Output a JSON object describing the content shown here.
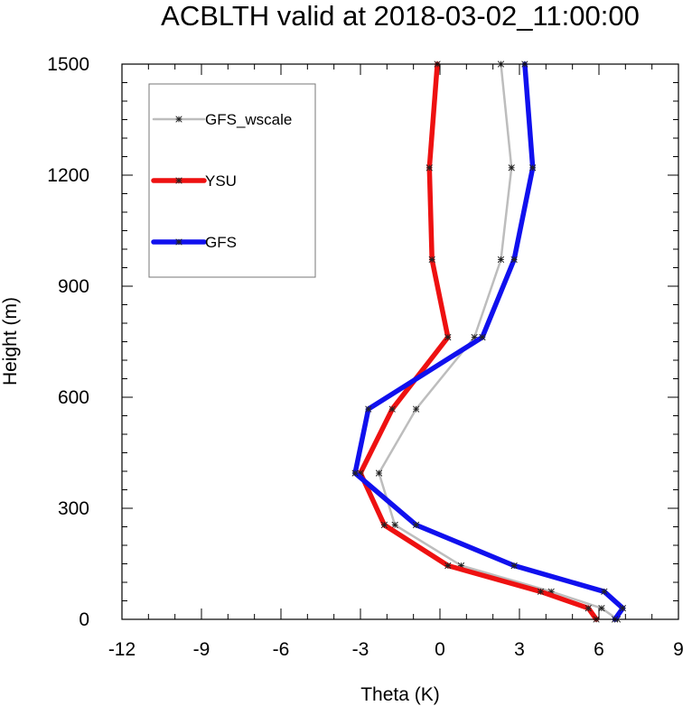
{
  "chart_data": {
    "type": "line",
    "title": "ACBLTH valid at 2018-03-02_11:00:00",
    "xlabel": "Theta (K)",
    "ylabel": "Height (m)",
    "xlim": [
      -12,
      9
    ],
    "ylim": [
      0,
      1500
    ],
    "xticks": [
      "-12",
      "-9",
      "-6",
      "-3",
      "0",
      "3",
      "6",
      "9"
    ],
    "yticks": [
      "0",
      "300",
      "600",
      "900",
      "1200",
      "1500"
    ],
    "legend_position": "top-left",
    "grid": false,
    "series": [
      {
        "name": "GFS_wscale",
        "color": "#bdbdbd",
        "points": [
          [
            6.7,
            0
          ],
          [
            6.1,
            30
          ],
          [
            4.2,
            75
          ],
          [
            0.8,
            145
          ],
          [
            -1.7,
            255
          ],
          [
            -2.3,
            395
          ],
          [
            -0.9,
            568
          ],
          [
            1.3,
            762
          ],
          [
            2.3,
            972
          ],
          [
            2.7,
            1220
          ],
          [
            2.3,
            1500
          ]
        ]
      },
      {
        "name": "YSU",
        "color": "#ee1111",
        "points": [
          [
            5.9,
            0
          ],
          [
            5.6,
            30
          ],
          [
            3.8,
            75
          ],
          [
            0.3,
            145
          ],
          [
            -2.1,
            255
          ],
          [
            -3.0,
            395
          ],
          [
            -1.8,
            568
          ],
          [
            0.3,
            762
          ],
          [
            -0.3,
            972
          ],
          [
            -0.4,
            1220
          ],
          [
            -0.1,
            1500
          ]
        ]
      },
      {
        "name": "GFS",
        "color": "#1010ee",
        "points": [
          [
            6.6,
            0
          ],
          [
            6.9,
            30
          ],
          [
            6.2,
            75
          ],
          [
            2.8,
            145
          ],
          [
            -0.9,
            255
          ],
          [
            -3.2,
            395
          ],
          [
            -2.7,
            568
          ],
          [
            1.6,
            762
          ],
          [
            2.8,
            972
          ],
          [
            3.5,
            1220
          ],
          [
            3.2,
            1500
          ]
        ]
      }
    ]
  }
}
